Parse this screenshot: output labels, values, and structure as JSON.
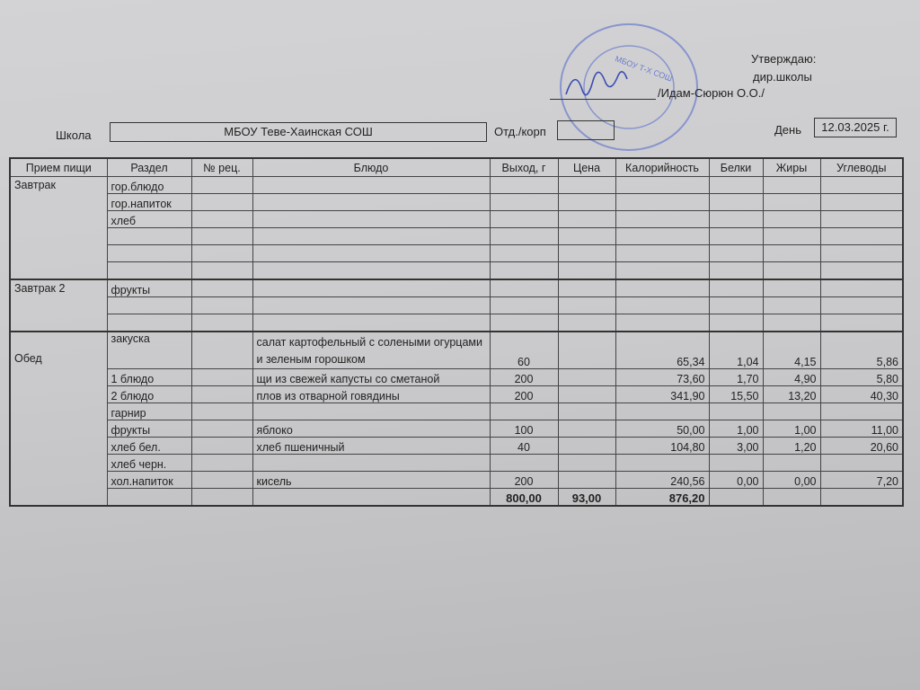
{
  "approval": {
    "line1": "Утверждаю:",
    "line2": "дир.школы",
    "signer": "/Идам-Сюрюн О.О./"
  },
  "stamp": {
    "text": "МБОУ Т-Х СОШ",
    "color": "#5a6fc0"
  },
  "header": {
    "school_label": "Школа",
    "school_value": "МБОУ Теве-Хаинская СОШ",
    "dept_label": "Отд./корп",
    "dept_value": "",
    "day_label": "День",
    "day_value": "12.03.2025 г."
  },
  "columns": [
    "Прием пищи",
    "Раздел",
    "№ рец.",
    "Блюдо",
    "Выход, г",
    "Цена",
    "Калорийность",
    "Белки",
    "Жиры",
    "Углеводы"
  ],
  "meals": [
    {
      "name": "Завтрак",
      "rows": [
        {
          "section": "гор.блюдо"
        },
        {
          "section": "гор.напиток"
        },
        {
          "section": "хлеб"
        },
        {
          "section": ""
        },
        {
          "section": ""
        },
        {
          "section": ""
        }
      ]
    },
    {
      "name": "Завтрак 2",
      "rows": [
        {
          "section": "фрукты"
        },
        {
          "section": ""
        },
        {
          "section": ""
        }
      ]
    },
    {
      "name": "Обед",
      "rows": [
        {
          "section": "закуска",
          "recipe": "",
          "dish": "салат картофельный с солеными огурцами и зеленым горошком",
          "yield": "60",
          "price": "",
          "kcal": "65,34",
          "protein": "1,04",
          "fat": "4,15",
          "carbs": "5,86"
        },
        {
          "section": "1 блюдо",
          "dish": "щи из свежей капусты со сметаной",
          "yield": "200",
          "kcal": "73,60",
          "protein": "1,70",
          "fat": "4,90",
          "carbs": "5,80"
        },
        {
          "section": "2 блюдо",
          "dish": "плов из отварной говядины",
          "yield": "200",
          "kcal": "341,90",
          "protein": "15,50",
          "fat": "13,20",
          "carbs": "40,30"
        },
        {
          "section": "гарнир"
        },
        {
          "section": "фрукты",
          "dish": "яблоко",
          "yield": "100",
          "kcal": "50,00",
          "protein": "1,00",
          "fat": "1,00",
          "carbs": "11,00"
        },
        {
          "section": "хлеб бел.",
          "dish": "хлеб пшеничный",
          "yield": "40",
          "kcal": "104,80",
          "protein": "3,00",
          "fat": "1,20",
          "carbs": "20,60"
        },
        {
          "section": "хлеб черн."
        },
        {
          "section": "хол.напиток",
          "dish": "кисель",
          "yield": "200",
          "kcal": "240,56",
          "protein": "0,00",
          "fat": "0,00",
          "carbs": "7,20"
        }
      ]
    }
  ],
  "totals": {
    "yield": "800,00",
    "price": "93,00",
    "kcal": "876,20"
  }
}
